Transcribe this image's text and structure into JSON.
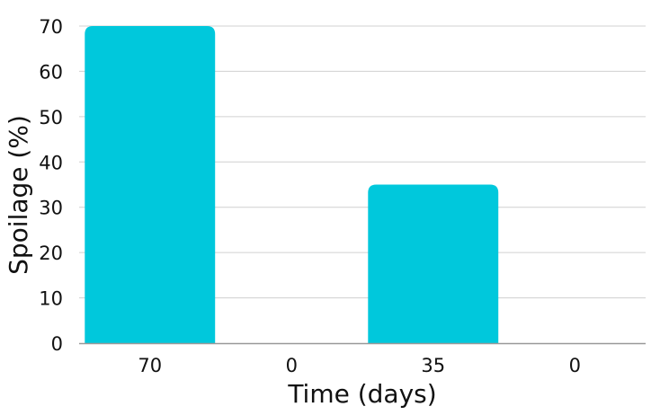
{
  "chart_data": {
    "type": "bar",
    "categories": [
      "70",
      "0",
      "35",
      "0"
    ],
    "values": [
      70,
      0,
      35,
      0
    ],
    "title": "",
    "xlabel": "Time (days)",
    "ylabel": "Spoilage (%)",
    "ylim": [
      0,
      70
    ],
    "yticks": [
      0,
      10,
      20,
      30,
      40,
      50,
      60,
      70
    ],
    "grid": true,
    "legend": "none",
    "colors": {
      "bar": "#00c8dc",
      "grid": "#d0d0d0",
      "axis": "#999999"
    }
  }
}
